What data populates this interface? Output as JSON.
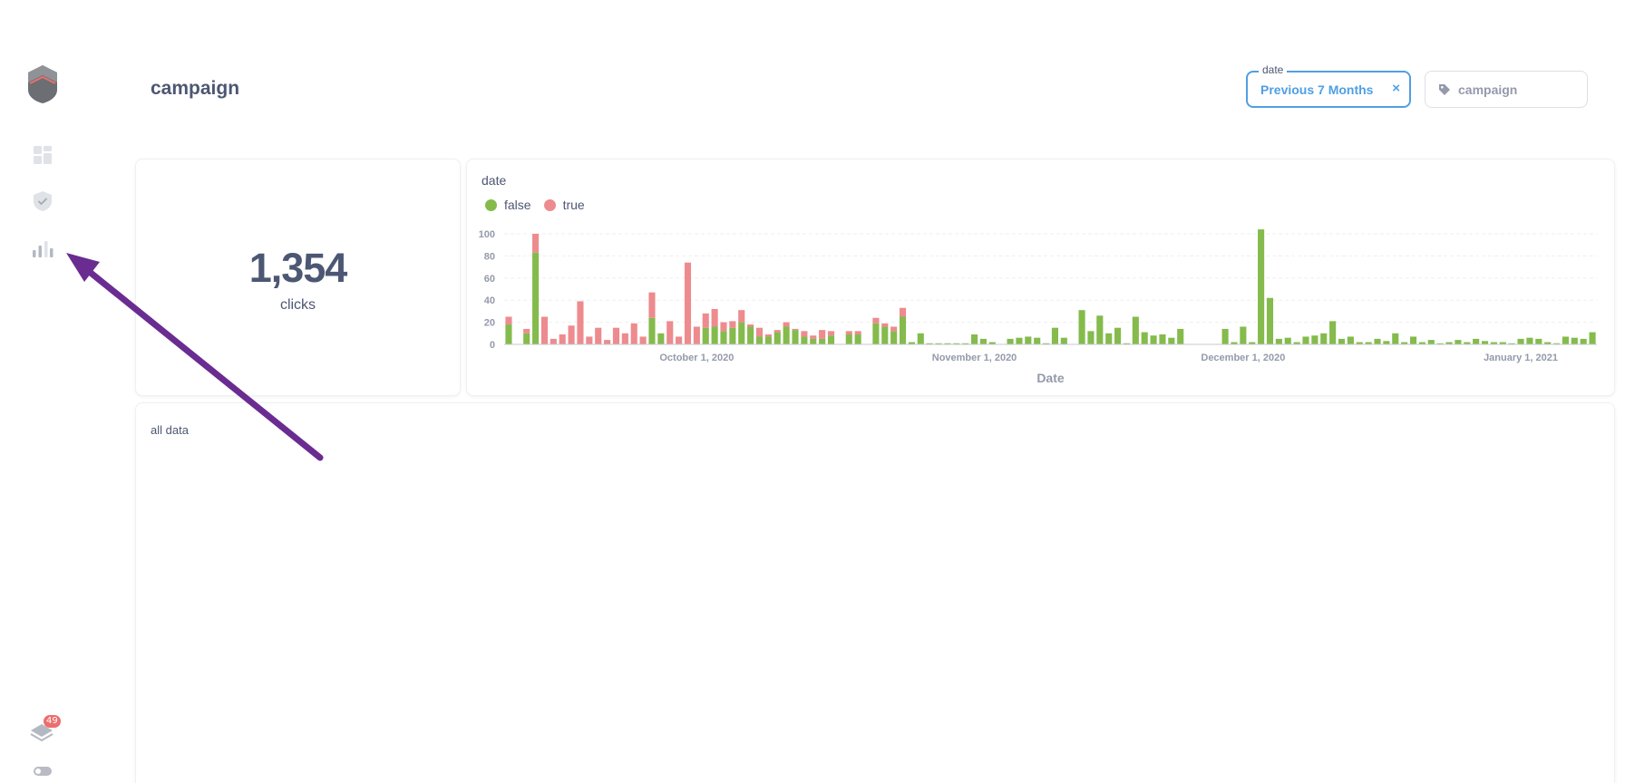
{
  "sidebar": {
    "logo_icon": "shield-logo-icon",
    "items": [
      {
        "name": "dashboard-icon"
      },
      {
        "name": "shield-check-icon"
      },
      {
        "name": "bar-chart-icon"
      }
    ],
    "notifications": {
      "icon": "layers-icon",
      "count": "49"
    },
    "toggle_icon": "toggle-icon"
  },
  "header": {
    "title": "campaign"
  },
  "filters": {
    "date": {
      "label": "date",
      "value": "Previous 7 Months",
      "clear": "×"
    },
    "campaign": {
      "icon": "tag-icon",
      "placeholder": "campaign"
    }
  },
  "scalar_card": {
    "value": "1,354",
    "label": "clicks"
  },
  "chart_card": {
    "title": "date",
    "colors": {
      "false": "#84bb4c",
      "true": "#ed8b8e"
    }
  },
  "table_card": {
    "title": "all data"
  },
  "chart_data": {
    "type": "bar",
    "stacked": true,
    "title": "date",
    "xlabel": "Date",
    "ylabel": "",
    "ylim": [
      0,
      100
    ],
    "yticks": [
      0,
      20,
      40,
      60,
      80,
      100
    ],
    "legend": "top-left",
    "grid": true,
    "xticks": [
      {
        "date": "2020-10-01",
        "label": "October 1, 2020"
      },
      {
        "date": "2020-11-01",
        "label": "November 1, 2020"
      },
      {
        "date": "2020-12-01",
        "label": "December 1, 2020"
      },
      {
        "date": "2021-01-01",
        "label": "January 1, 2021"
      }
    ],
    "x_start": "2020-09-10",
    "series": [
      {
        "name": "false",
        "color": "#84bb4c",
        "values": [
          18,
          0,
          10,
          83,
          0,
          0,
          0,
          0,
          0,
          0,
          0,
          0,
          0,
          0,
          0,
          0,
          24,
          10,
          0,
          0,
          0,
          0,
          15,
          16,
          12,
          15,
          20,
          16,
          7,
          7,
          11,
          16,
          13,
          7,
          5,
          5,
          8,
          0,
          9,
          9,
          0,
          19,
          16,
          12,
          25,
          2,
          10,
          1,
          1,
          1,
          1,
          1,
          9,
          5,
          2,
          0,
          5,
          6,
          7,
          6,
          1,
          15,
          6,
          0,
          31,
          12,
          26,
          10,
          15,
          1,
          25,
          11,
          8,
          9,
          6,
          14,
          0,
          0,
          0,
          0,
          14,
          2,
          16,
          2,
          104,
          42,
          5,
          6,
          2,
          7,
          8,
          10,
          21,
          5,
          7,
          2,
          2,
          5,
          3,
          10,
          2,
          7,
          2,
          4,
          1,
          2,
          4,
          2,
          5,
          3,
          2,
          2,
          1,
          5,
          6,
          5,
          2,
          1,
          7,
          6,
          5,
          11
        ]
      },
      {
        "name": "true",
        "color": "#ed8b8e",
        "values": [
          7,
          0,
          4,
          17,
          25,
          5,
          9,
          17,
          39,
          7,
          15,
          4,
          15,
          10,
          19,
          7,
          23,
          0,
          21,
          7,
          74,
          16,
          13,
          16,
          8,
          6,
          11,
          2,
          8,
          2,
          2,
          4,
          1,
          5,
          3,
          8,
          4,
          0,
          3,
          3,
          0,
          5,
          3,
          4,
          8,
          0,
          0,
          0,
          0,
          0,
          0,
          0,
          0,
          0,
          0,
          0,
          0,
          0,
          0,
          0,
          0,
          0,
          0,
          0,
          0,
          0,
          0,
          0,
          0,
          0,
          0,
          0,
          0,
          0,
          0,
          0,
          0,
          0,
          0,
          0,
          0,
          0,
          0,
          0,
          0,
          0,
          0,
          0,
          0,
          0,
          0,
          0,
          0,
          0,
          0,
          0,
          0,
          0,
          0,
          0,
          0,
          0,
          0,
          0,
          0,
          0,
          0,
          0,
          0,
          0,
          0,
          0,
          0,
          0,
          0,
          0,
          0,
          0,
          0,
          0,
          0,
          0
        ]
      }
    ]
  }
}
